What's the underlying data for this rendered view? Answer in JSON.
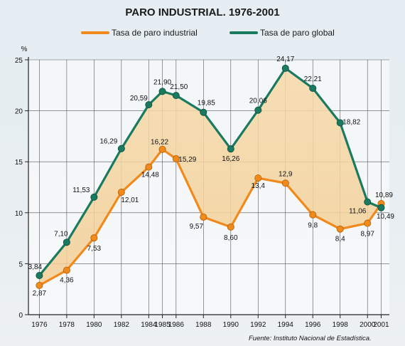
{
  "chart_data": {
    "type": "line",
    "title": "PARO INDUSTRIAL. 1976-2001",
    "ylabel": "%",
    "xlabel": "",
    "ylim": [
      0,
      25
    ],
    "yticks": [
      0,
      5,
      10,
      15,
      20,
      25
    ],
    "xticks": [
      "1976",
      "1978",
      "1980",
      "1982",
      "1984",
      "1985",
      "1986",
      "1988",
      "1990",
      "1992",
      "1994",
      "1996",
      "1998",
      "2000",
      "2001"
    ],
    "grid": true,
    "legend_position": "top",
    "source": "Fuente: Instituto Nacional de Estadística.",
    "series": [
      {
        "name": "Tasa de paro industrial",
        "color": "#f08a1c",
        "x": [
          1976,
          1978,
          1980,
          1982,
          1984,
          1985,
          1986,
          1988,
          1990,
          1992,
          1994,
          1996,
          1998,
          2000,
          2001
        ],
        "values": [
          2.87,
          4.36,
          7.53,
          12.01,
          14.48,
          16.22,
          15.29,
          9.57,
          8.6,
          13.4,
          12.9,
          9.8,
          8.4,
          8.97,
          10.89
        ],
        "labels": [
          "2,87",
          "4,36",
          "7,53",
          "12,01",
          "14,48",
          "16,22",
          "15,29",
          "9,57",
          "8,60",
          "13,4",
          "12,9",
          "9,8",
          "8,4",
          "8,97",
          "10,89"
        ]
      },
      {
        "name": "Tasa de paro global",
        "color": "#1a7a60",
        "x": [
          1976,
          1978,
          1980,
          1982,
          1984,
          1985,
          1986,
          1988,
          1990,
          1992,
          1994,
          1996,
          1998,
          2000,
          2001
        ],
        "values": [
          3.84,
          7.1,
          11.53,
          16.29,
          20.59,
          21.9,
          21.5,
          19.85,
          16.26,
          20.06,
          24.17,
          22.21,
          18.82,
          11.06,
          10.49
        ],
        "labels": [
          "3,84",
          "7,10",
          "11,53",
          "16,29",
          "20,59",
          "21,90",
          "21,50",
          "19,85",
          "16,26",
          "20,06",
          "24,17",
          "22,21",
          "18,82",
          "11,06",
          "10,49"
        ]
      }
    ]
  }
}
